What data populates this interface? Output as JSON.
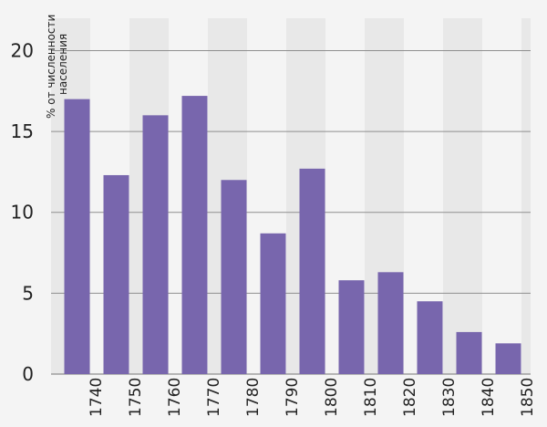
{
  "chart_data": {
    "type": "bar",
    "title": "",
    "xlabel": "",
    "ylabel": "% от численности населения",
    "ylabel_lines": [
      "% от численности",
      "населения"
    ],
    "ylim": [
      0,
      22
    ],
    "yticks": [
      0,
      5,
      10,
      15,
      20
    ],
    "x_tick_labels": [
      "1740",
      "1750",
      "1760",
      "1770",
      "1780",
      "1790",
      "1800",
      "1810",
      "1820",
      "1830",
      "1840",
      "1850"
    ],
    "x_tick_label_orientation": "vertical",
    "bar_centers_year": [
      1735,
      1745,
      1755,
      1765,
      1775,
      1785,
      1795,
      1805,
      1815,
      1825,
      1835,
      1845
    ],
    "values": [
      17.0,
      12.3,
      16.0,
      17.2,
      12.0,
      8.7,
      12.7,
      5.8,
      6.3,
      4.5,
      2.6,
      1.9
    ],
    "grid": true,
    "colors": {
      "bar": "#7866ad",
      "background": "#f4f4f4",
      "band_dark": "#e8e8e8",
      "grid": "#8f8f8f",
      "text": "#222222"
    }
  }
}
